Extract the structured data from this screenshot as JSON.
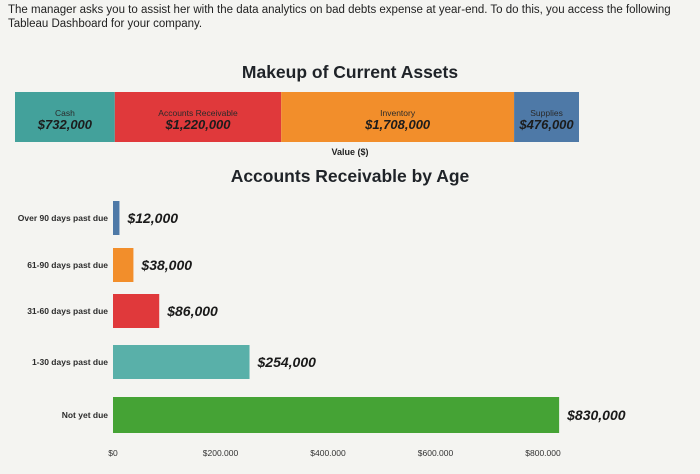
{
  "intro_text": "The manager asks you to assist her with the data analytics on bad debts expense at year-end. To do this, you access the following Tableau Dashboard for your company.",
  "chart_data": [
    {
      "type": "bar",
      "stacked": true,
      "orientation": "horizontal",
      "title": "Makeup of Current Assets",
      "xlabel": "Value ($)",
      "segments": [
        {
          "name": "Cash",
          "value": 732000,
          "label": "$732,000",
          "color": "#43a19b"
        },
        {
          "name": "Accounts Receivable",
          "value": 1220000,
          "label": "$1,220,000",
          "color": "#e0393b"
        },
        {
          "name": "Inventory",
          "value": 1708000,
          "label": "$1,708,000",
          "color": "#f28e2b"
        },
        {
          "name": "Supplies",
          "value": 476000,
          "label": "$476,000",
          "color": "#4e79a7"
        }
      ]
    },
    {
      "type": "bar",
      "orientation": "horizontal",
      "title": "Accounts Receivable by Age",
      "categories": [
        "Over 90 days past due",
        "61-90 days past due",
        "31-60 days past due",
        "1-30 days past due",
        "Not yet due"
      ],
      "values": [
        12000,
        38000,
        86000,
        254000,
        830000
      ],
      "value_labels": [
        "$12,000",
        "$38,000",
        "$86,000",
        "$254,000",
        "$830,000"
      ],
      "colors": [
        "#4e79a7",
        "#f28e2b",
        "#e0393b",
        "#59b0a9",
        "#45a335"
      ],
      "xlim": [
        0,
        900000
      ],
      "xticks": [
        0,
        200000,
        400000,
        600000,
        800000
      ],
      "xtick_labels": [
        "$0",
        "$200.000",
        "$400.000",
        "$600.000",
        "$800.000"
      ],
      "grid": false
    }
  ]
}
